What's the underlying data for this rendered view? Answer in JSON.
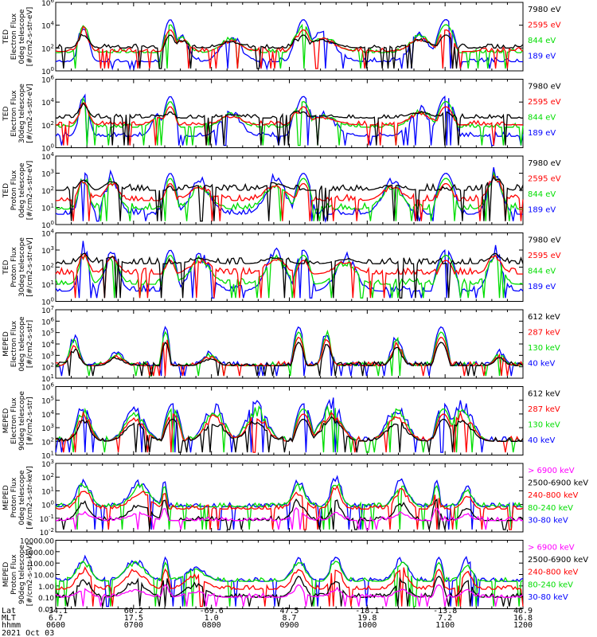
{
  "colors": {
    "black": "#000000",
    "red": "#ff0000",
    "green": "#00dd00",
    "blue": "#0000ff",
    "magenta": "#ff00ff"
  },
  "chart_data": [
    {
      "type": "line",
      "scale": "log",
      "ylabel": [
        "TED",
        "Electron Flux",
        "0deg telescope",
        "[#/cm2-s-str-eV]"
      ],
      "ylim_exp": [
        0,
        6
      ],
      "yticks": [
        "10^0",
        "10^2",
        "10^4",
        "10^6"
      ],
      "legend": [
        {
          "name": "7980 eV",
          "color": "black"
        },
        {
          "name": "2595 eV",
          "color": "red"
        },
        {
          "name": "844 eV",
          "color": "green"
        },
        {
          "name": "189 eV",
          "color": "blue"
        }
      ],
      "baseline": [
        2.0,
        1.7,
        1.6,
        0.8
      ],
      "pulses": [
        [
          0.06,
          0.014,
          4.6
        ],
        [
          0.27,
          0.02,
          3.2
        ],
        [
          0.375,
          0.03,
          3.1
        ],
        [
          0.515,
          0.012,
          3.5
        ],
        [
          0.57,
          0.04,
          3.3
        ],
        [
          0.78,
          0.03,
          3.4
        ]
      ],
      "arches": [
        [
          0.22,
          0.27
        ],
        [
          0.5,
          0.56
        ],
        [
          0.8,
          0.87
        ]
      ]
    },
    {
      "type": "line",
      "scale": "log",
      "ylabel": [
        "TED",
        "Electron Flux",
        "30deg telescope",
        "[#/cm2-s-str-eV]"
      ],
      "ylim_exp": [
        0,
        6
      ],
      "yticks": [
        "10^0",
        "10^2",
        "10^4",
        "10^6"
      ],
      "legend": [
        {
          "name": "7980 eV",
          "color": "black"
        },
        {
          "name": "2595 eV",
          "color": "red"
        },
        {
          "name": "844 eV",
          "color": "green"
        },
        {
          "name": "189 eV",
          "color": "blue"
        }
      ],
      "baseline": [
        2.6,
        2.0,
        1.8,
        1.0
      ],
      "pulses": [
        [
          0.06,
          0.014,
          4.8
        ],
        [
          0.22,
          0.02,
          3.0
        ],
        [
          0.375,
          0.03,
          3.2
        ],
        [
          0.515,
          0.012,
          3.8
        ],
        [
          0.57,
          0.04,
          3.0
        ],
        [
          0.78,
          0.03,
          3.6
        ]
      ],
      "arches": [
        [
          0.22,
          0.27
        ],
        [
          0.5,
          0.56
        ],
        [
          0.8,
          0.87
        ]
      ]
    },
    {
      "type": "line",
      "scale": "log",
      "ylabel": [
        "TED",
        "Proton Flux",
        "0deg telescope",
        "[#/cm2-s-str-eV]"
      ],
      "ylim_exp": [
        0,
        4
      ],
      "yticks": [
        "10^0",
        "10^1",
        "10^2",
        "10^3",
        "10^4"
      ],
      "legend": [
        {
          "name": "7980 eV",
          "color": "black"
        },
        {
          "name": "2595 eV",
          "color": "red"
        },
        {
          "name": "844 eV",
          "color": "green"
        },
        {
          "name": "189 eV",
          "color": "blue"
        }
      ],
      "baseline": [
        2.0,
        1.4,
        0.9,
        0.6
      ],
      "pulses": [
        [
          0.06,
          0.014,
          3.3
        ],
        [
          0.12,
          0.02,
          3.0
        ],
        [
          0.31,
          0.03,
          2.6
        ],
        [
          0.47,
          0.03,
          2.8
        ],
        [
          0.72,
          0.03,
          2.6
        ],
        [
          0.94,
          0.02,
          3.4
        ]
      ],
      "arches": [
        [
          0.22,
          0.27
        ],
        [
          0.5,
          0.56
        ],
        [
          0.8,
          0.87
        ]
      ]
    },
    {
      "type": "line",
      "scale": "log",
      "ylabel": [
        "TED",
        "Proton Flux",
        "30deg telescope",
        "[#/cm2-s-str-eV]"
      ],
      "ylim_exp": [
        0,
        4
      ],
      "yticks": [
        "10^0",
        "10^1",
        "10^2",
        "10^3",
        "10^4"
      ],
      "legend": [
        {
          "name": "7980 eV",
          "color": "black"
        },
        {
          "name": "2595 eV",
          "color": "red"
        },
        {
          "name": "844 eV",
          "color": "green"
        },
        {
          "name": "189 eV",
          "color": "blue"
        }
      ],
      "baseline": [
        2.2,
        1.6,
        1.0,
        0.6
      ],
      "pulses": [
        [
          0.06,
          0.014,
          3.3
        ],
        [
          0.12,
          0.02,
          3.0
        ],
        [
          0.31,
          0.03,
          2.8
        ],
        [
          0.47,
          0.03,
          2.9
        ],
        [
          0.62,
          0.03,
          2.7
        ],
        [
          0.94,
          0.02,
          3.2
        ]
      ],
      "arches": [
        [
          0.22,
          0.27
        ],
        [
          0.5,
          0.56
        ],
        [
          0.8,
          0.87
        ]
      ]
    },
    {
      "type": "line",
      "scale": "log",
      "ylabel": [
        "MEPED",
        "Electron Flux",
        "0deg telescope",
        "[#/cm2-s-str]"
      ],
      "ylim_exp": [
        1,
        7
      ],
      "yticks": [
        "10^1",
        "10^2",
        "10^3",
        "10^4",
        "10^5",
        "10^6",
        "10^7"
      ],
      "legend": [
        {
          "name": "612 keV",
          "color": "black"
        },
        {
          "name": "287 keV",
          "color": "red"
        },
        {
          "name": "130 keV",
          "color": "green"
        },
        {
          "name": "40 keV",
          "color": "blue"
        }
      ],
      "baseline": [
        2.1,
        2.1,
        2.1,
        2.1
      ],
      "pulses": [
        [
          0.04,
          0.014,
          4.8
        ],
        [
          0.13,
          0.02,
          3.4
        ],
        [
          0.33,
          0.02,
          3.3
        ],
        [
          0.58,
          0.012,
          5.4
        ],
        [
          0.73,
          0.015,
          5.0
        ],
        [
          0.95,
          0.015,
          3.4
        ]
      ],
      "arches": [
        [
          0.22,
          0.25
        ],
        [
          0.5,
          0.54
        ],
        [
          0.8,
          0.85
        ]
      ]
    },
    {
      "type": "line",
      "scale": "log",
      "ylabel": [
        "MEPED",
        "Electron Flux",
        "90deg telescope",
        "[#/cm2-s-str]"
      ],
      "ylim_exp": [
        1,
        6
      ],
      "yticks": [
        "10^1",
        "10^2",
        "10^3",
        "10^4",
        "10^5",
        "10^6"
      ],
      "legend": [
        {
          "name": "612 keV",
          "color": "black"
        },
        {
          "name": "287 keV",
          "color": "red"
        },
        {
          "name": "130 keV",
          "color": "green"
        },
        {
          "name": "40 keV",
          "color": "blue"
        }
      ],
      "baseline": [
        2.0,
        2.0,
        2.0,
        2.0
      ],
      "pulses": [
        [
          0.06,
          0.02,
          4.8
        ],
        [
          0.17,
          0.03,
          4.4
        ],
        [
          0.34,
          0.03,
          4.6
        ],
        [
          0.43,
          0.03,
          4.8
        ],
        [
          0.59,
          0.03,
          5.0
        ],
        [
          0.73,
          0.03,
          4.6
        ],
        [
          0.87,
          0.03,
          4.8
        ]
      ],
      "arches": [
        [
          0.22,
          0.28
        ],
        [
          0.5,
          0.56
        ],
        [
          0.8,
          0.86
        ]
      ]
    },
    {
      "type": "line",
      "scale": "log",
      "ylabel": [
        "MEPED",
        "Proton Flux",
        "0deg telescope",
        "[#/cm2-s-str-keV]"
      ],
      "ylim_exp": [
        -2,
        4
      ],
      "yticks": [
        "10^-2",
        "10^-1",
        "10^0",
        "10^1",
        "10^2",
        "10^3"
      ],
      "legend": [
        {
          "name": "> 6900 keV",
          "color": "magenta"
        },
        {
          "name": "2500-6900 keV",
          "color": "black"
        },
        {
          "name": "240-800 keV",
          "color": "red"
        },
        {
          "name": "80-240 keV",
          "color": "green"
        },
        {
          "name": "30-80 keV",
          "color": "blue"
        }
      ],
      "baseline": [
        -1.0,
        -1.0,
        0.0,
        0.2
      ],
      "pulses": [
        [
          0.06,
          0.02,
          2.6
        ],
        [
          0.18,
          0.03,
          2.4
        ],
        [
          0.52,
          0.02,
          2.4
        ],
        [
          0.6,
          0.015,
          3.0
        ],
        [
          0.74,
          0.02,
          2.6
        ],
        [
          0.88,
          0.015,
          2.0
        ]
      ],
      "arches": [
        [
          0.22,
          0.245
        ],
        [
          0.5,
          0.53
        ],
        [
          0.8,
          0.83
        ]
      ]
    },
    {
      "type": "line",
      "scale": "log",
      "ylabel": [
        "MEPED",
        "Proton Flux",
        "90deg telescope",
        "[#/cm2-s-str-keV]"
      ],
      "ylim_exp": [
        -2,
        4
      ],
      "yticks": [
        "0.01",
        "0.10",
        "1.00",
        "10.00",
        "100.00",
        "1000.00",
        "10000.00"
      ],
      "legend": [
        {
          "name": "> 6900 keV",
          "color": "magenta"
        },
        {
          "name": "2500-6900 keV",
          "color": "black"
        },
        {
          "name": "240-800 keV",
          "color": "red"
        },
        {
          "name": "80-240 keV",
          "color": "green"
        },
        {
          "name": "30-80 keV",
          "color": "blue"
        }
      ],
      "baseline": [
        -1.0,
        -1.0,
        -0.3,
        0.4
      ],
      "pulses": [
        [
          0.06,
          0.02,
          2.6
        ],
        [
          0.17,
          0.03,
          2.3
        ],
        [
          0.3,
          0.03,
          1.6
        ],
        [
          0.52,
          0.02,
          2.4
        ],
        [
          0.6,
          0.015,
          3.0
        ],
        [
          0.74,
          0.02,
          2.6
        ],
        [
          0.88,
          0.015,
          2.4
        ]
      ],
      "arches": [
        [
          0.22,
          0.25
        ],
        [
          0.5,
          0.54
        ],
        [
          0.8,
          0.84
        ]
      ]
    }
  ],
  "xaxis": {
    "row_labels": [
      "Lat",
      "MLT",
      "hhmm"
    ],
    "date": "2021 Oct 03",
    "columns": [
      {
        "lat": "-34.1",
        "mlt": "6.7",
        "hhmm": "0600"
      },
      {
        "lat": "60.2",
        "mlt": "17.5",
        "hhmm": "0700"
      },
      {
        "lat": "-69.6",
        "mlt": "1.0",
        "hhmm": "0800"
      },
      {
        "lat": "47.5",
        "mlt": "8.7",
        "hhmm": "0900"
      },
      {
        "lat": "-18.1",
        "mlt": "19.8",
        "hhmm": "1000"
      },
      {
        "lat": "-13.8",
        "mlt": "7.2",
        "hhmm": "1100"
      },
      {
        "lat": "46.9",
        "mlt": "16.8",
        "hhmm": "1200"
      }
    ]
  }
}
